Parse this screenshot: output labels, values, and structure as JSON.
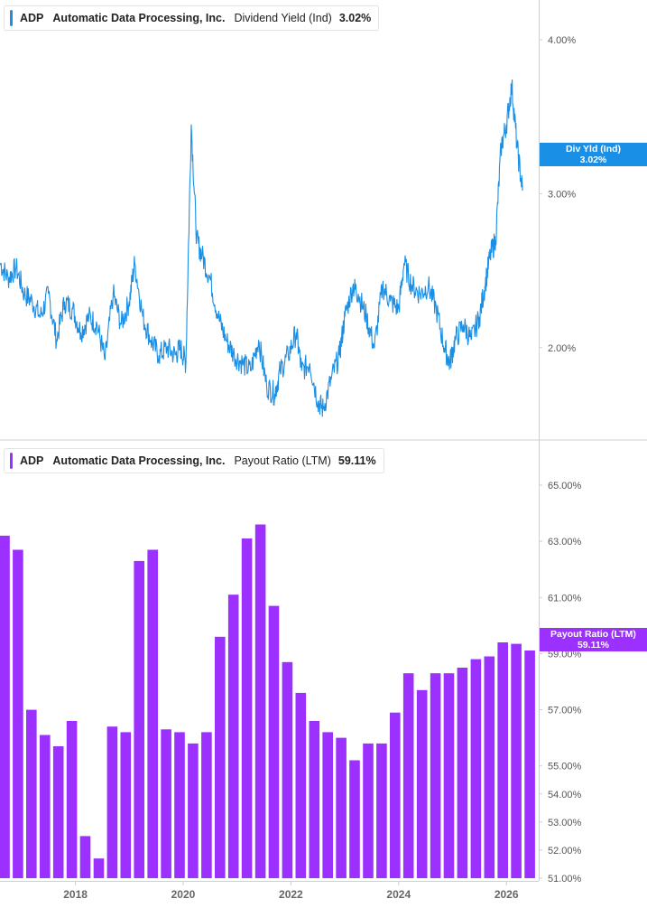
{
  "colors": {
    "yield": "#1a8fe6",
    "payout": "#9b30ff",
    "axis": "#cfcfcf",
    "grid": "#e6e6e6"
  },
  "top_legend": {
    "ticker": "ADP",
    "company": "Automatic Data Processing, Inc.",
    "metric": "Dividend Yield (Ind)",
    "value": "3.02%"
  },
  "top_tag": {
    "label": "Div Yld (Ind)",
    "value": "3.02%"
  },
  "bottom_legend": {
    "ticker": "ADP",
    "company": "Automatic Data Processing, Inc.",
    "metric": "Payout Ratio (LTM)",
    "value": "59.11%"
  },
  "bottom_tag": {
    "label": "Payout Ratio (LTM)",
    "value": "59.11%"
  },
  "chart_data": [
    {
      "type": "line",
      "series": [
        {
          "name": "Dividend Yield (Ind)",
          "x": [
            2016.6,
            2016.75,
            2016.9,
            2017.05,
            2017.2,
            2017.35,
            2017.5,
            2017.65,
            2017.8,
            2017.95,
            2018.1,
            2018.25,
            2018.4,
            2018.55,
            2018.7,
            2018.85,
            2019.0,
            2019.1,
            2019.25,
            2019.4,
            2019.55,
            2019.7,
            2019.85,
            2019.95,
            2020.05,
            2020.15,
            2020.25,
            2020.35,
            2020.5,
            2020.65,
            2020.8,
            2020.95,
            2021.1,
            2021.25,
            2021.4,
            2021.55,
            2021.7,
            2021.8,
            2021.95,
            2022.1,
            2022.2,
            2022.35,
            2022.5,
            2022.6,
            2022.75,
            2022.9,
            2023.0,
            2023.15,
            2023.25,
            2023.4,
            2023.55,
            2023.7,
            2023.85,
            2024.0,
            2024.1,
            2024.25,
            2024.4,
            2024.55,
            2024.7,
            2024.85,
            2024.95,
            2025.05,
            2025.2,
            2025.35,
            2025.5,
            2025.6,
            2025.7,
            2025.8,
            2025.9,
            2026.0,
            2026.1,
            2026.2,
            2026.3
          ],
          "values": [
            2.55,
            2.45,
            2.52,
            2.35,
            2.3,
            2.2,
            2.35,
            2.05,
            2.3,
            2.25,
            2.1,
            2.2,
            2.15,
            1.92,
            2.35,
            2.15,
            2.3,
            2.55,
            2.2,
            2.05,
            1.95,
            2.0,
            1.95,
            2.0,
            1.9,
            3.45,
            2.7,
            2.6,
            2.45,
            2.2,
            2.05,
            1.95,
            1.9,
            1.85,
            2.05,
            1.75,
            1.7,
            1.85,
            1.95,
            2.1,
            1.85,
            1.9,
            1.65,
            1.6,
            1.8,
            1.95,
            2.2,
            2.4,
            2.35,
            2.2,
            2.0,
            2.4,
            2.3,
            2.25,
            2.55,
            2.4,
            2.35,
            2.4,
            2.25,
            2.0,
            1.9,
            2.05,
            2.15,
            2.05,
            2.2,
            2.4,
            2.6,
            2.7,
            3.3,
            3.45,
            3.7,
            3.3,
            3.02
          ]
        }
      ],
      "yticks": [
        "2.00%",
        "3.00%",
        "4.00%"
      ],
      "ylim": [
        1.5,
        4.2
      ],
      "grid": false
    },
    {
      "type": "bar",
      "series": [
        {
          "name": "Payout Ratio (LTM)",
          "values": [
            63.2,
            62.7,
            57.0,
            56.1,
            55.7,
            56.6,
            52.5,
            51.7,
            56.4,
            56.2,
            62.3,
            62.7,
            56.3,
            56.2,
            55.8,
            56.2,
            59.6,
            61.1,
            63.1,
            63.6,
            60.7,
            58.7,
            57.6,
            56.6,
            56.2,
            56.0,
            55.2,
            55.8,
            55.8,
            56.9,
            58.3,
            57.7,
            58.3,
            58.3,
            58.5,
            58.8,
            58.9,
            59.4,
            59.35,
            59.11
          ]
        }
      ],
      "x_start": 2016.6,
      "x_step": 0.25,
      "yticks": [
        "51.00%",
        "52.00%",
        "53.00%",
        "54.00%",
        "55.00%",
        "57.00%",
        "59.00%",
        "61.00%",
        "63.00%",
        "65.00%"
      ],
      "ylim": [
        51.0,
        65.0
      ],
      "grid": false
    }
  ],
  "x_axis": {
    "ticks": [
      2018,
      2020,
      2022,
      2024,
      2026
    ],
    "labels": [
      "2018",
      "2020",
      "2022",
      "2024",
      "2026"
    ],
    "range": [
      2016.6,
      2026.6
    ]
  }
}
